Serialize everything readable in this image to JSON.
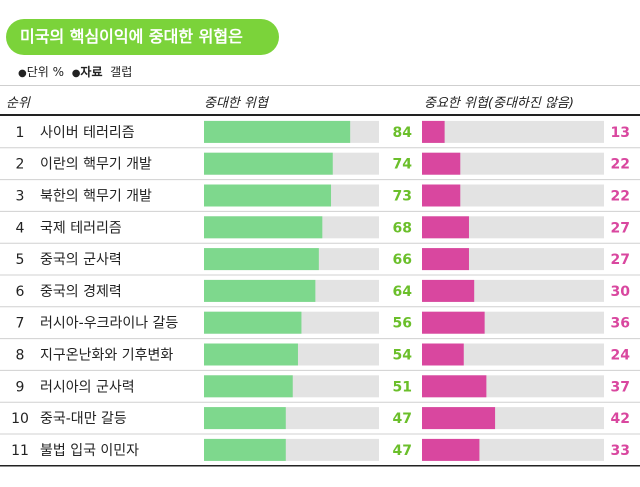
{
  "title": "미국의 핵심이익에 중대한 위협은",
  "meta": {
    "unit_label": "단위 %",
    "source_label": "자료",
    "source_value": "갤럽"
  },
  "headers": {
    "rank": "순위",
    "major": "중대한 위협",
    "minor": "중요한 위협(중대하진 않음)"
  },
  "colors": {
    "title_bg": "#7bd33a",
    "major_bar": "#7ed88d",
    "minor_bar": "#d9479f",
    "track": "#e3e3e3",
    "major_value": "#6bbf2b",
    "minor_value": "#d9479f"
  },
  "chart_data": {
    "type": "bar",
    "title": "미국의 핵심이익에 중대한 위협은",
    "unit": "%",
    "xlim": [
      0,
      100
    ],
    "ranks": [
      "1",
      "2",
      "3",
      "4",
      "5",
      "6",
      "7",
      "8",
      "9",
      "10",
      "11"
    ],
    "categories": [
      "사이버 테러리즘",
      "이란의 핵무기 개발",
      "북한의 핵무기 개발",
      "국제 테러리즘",
      "중국의 군사력",
      "중국의 경제력",
      "러시아-우크라이나 갈등",
      "지구온난화와 기후변화",
      "러시아의 군사력",
      "중국-대만 갈등",
      "불법 입국 이민자"
    ],
    "series": [
      {
        "name": "중대한 위협",
        "values": [
          84,
          74,
          73,
          68,
          66,
          64,
          56,
          54,
          51,
          47,
          47
        ]
      },
      {
        "name": "중요한 위협(중대하진 않음)",
        "values": [
          13,
          22,
          22,
          27,
          27,
          30,
          36,
          24,
          37,
          42,
          33
        ]
      }
    ]
  }
}
